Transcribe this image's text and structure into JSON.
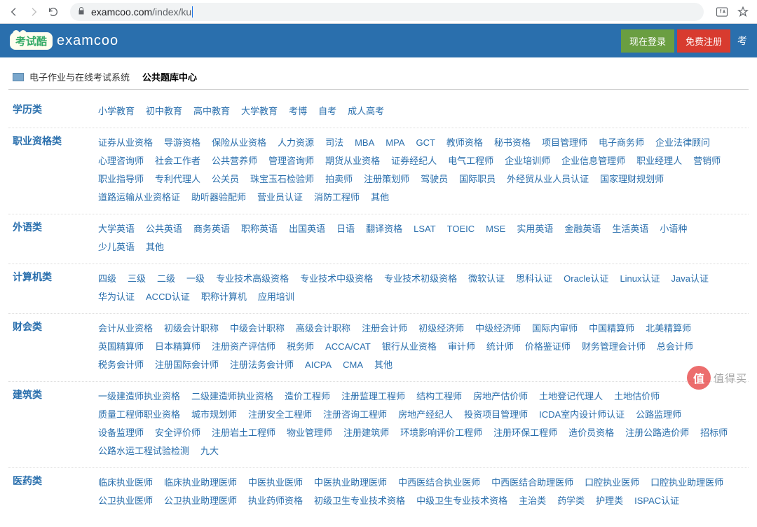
{
  "browser": {
    "url_domain": "examcoo.com",
    "url_path": "/index/ku"
  },
  "header": {
    "logo_badge": "考试酷",
    "logo_text": "examcoo",
    "login_label": "现在登录",
    "register_label": "免费注册",
    "extra_label": "考"
  },
  "breadcrumb": {
    "item1": "电子作业与在线考试系统",
    "item2": "公共题库中心"
  },
  "categories": [
    {
      "label": "学历类",
      "links": [
        "小学教育",
        "初中教育",
        "高中教育",
        "大学教育",
        "考博",
        "自考",
        "成人高考"
      ]
    },
    {
      "label": "职业资格类",
      "links": [
        "证券从业资格",
        "导游资格",
        "保险从业资格",
        "人力资源",
        "司法",
        "MBA",
        "MPA",
        "GCT",
        "教师资格",
        "秘书资格",
        "项目管理师",
        "电子商务师",
        "企业法律顾问",
        "心理咨询师",
        "社会工作者",
        "公共营养师",
        "管理咨询师",
        "期货从业资格",
        "证券经纪人",
        "电气工程师",
        "企业培训师",
        "企业信息管理师",
        "职业经理人",
        "营销师",
        "职业指导师",
        "专利代理人",
        "公关员",
        "珠宝玉石检验师",
        "拍卖师",
        "注册策划师",
        "驾驶员",
        "国际职员",
        "外经贸从业人员认证",
        "国家理财规划师",
        "道路运输从业资格证",
        "助听器验配师",
        "营业员认证",
        "消防工程师",
        "其他"
      ]
    },
    {
      "label": "外语类",
      "links": [
        "大学英语",
        "公共英语",
        "商务英语",
        "职称英语",
        "出国英语",
        "日语",
        "翻译资格",
        "LSAT",
        "TOEIC",
        "MSE",
        "实用英语",
        "金融英语",
        "生活英语",
        "小语种",
        "少儿英语",
        "其他"
      ]
    },
    {
      "label": "计算机类",
      "links": [
        "四级",
        "三级",
        "二级",
        "一级",
        "专业技术高级资格",
        "专业技术中级资格",
        "专业技术初级资格",
        "微软认证",
        "思科认证",
        "Oracle认证",
        "Linux认证",
        "Java认证",
        "华为认证",
        "ACCD认证",
        "职称计算机",
        "应用培训"
      ]
    },
    {
      "label": "财会类",
      "links": [
        "会计从业资格",
        "初级会计职称",
        "中级会计职称",
        "高级会计职称",
        "注册会计师",
        "初级经济师",
        "中级经济师",
        "国际内审师",
        "中国精算师",
        "北美精算师",
        "英国精算师",
        "日本精算师",
        "注册资产评估师",
        "税务师",
        "ACCA/CAT",
        "银行从业资格",
        "审计师",
        "统计师",
        "价格鉴证师",
        "财务管理会计师",
        "总会计师",
        "税务会计师",
        "注册国际会计师",
        "注册法务会计师",
        "AICPA",
        "CMA",
        "其他"
      ]
    },
    {
      "label": "建筑类",
      "links": [
        "一级建造师执业资格",
        "二级建造师执业资格",
        "造价工程师",
        "注册监理工程师",
        "结构工程师",
        "房地产估价师",
        "土地登记代理人",
        "土地估价师",
        "质量工程师职业资格",
        "城市规划师",
        "注册安全工程师",
        "注册咨询工程师",
        "房地产经纪人",
        "投资项目管理师",
        "ICDA室内设计师认证",
        "公路监理师",
        "设备监理师",
        "安全评价师",
        "注册岩土工程师",
        "物业管理师",
        "注册建筑师",
        "环境影响评价工程师",
        "注册环保工程师",
        "造价员资格",
        "注册公路造价师",
        "招标师",
        "公路水运工程试验检测",
        "九大"
      ]
    },
    {
      "label": "医药类",
      "links": [
        "临床执业医师",
        "临床执业助理医师",
        "中医执业医师",
        "中医执业助理医师",
        "中西医结合执业医师",
        "中西医结合助理医师",
        "口腔执业医师",
        "口腔执业助理医师",
        "公卫执业医师",
        "公卫执业助理医师",
        "执业药师资格",
        "初级卫生专业技术资格",
        "中级卫生专业技术资格",
        "主治类",
        "药学类",
        "护理类",
        "ISPAC认证"
      ]
    }
  ],
  "watermark": {
    "icon": "值",
    "text": "值得买"
  }
}
